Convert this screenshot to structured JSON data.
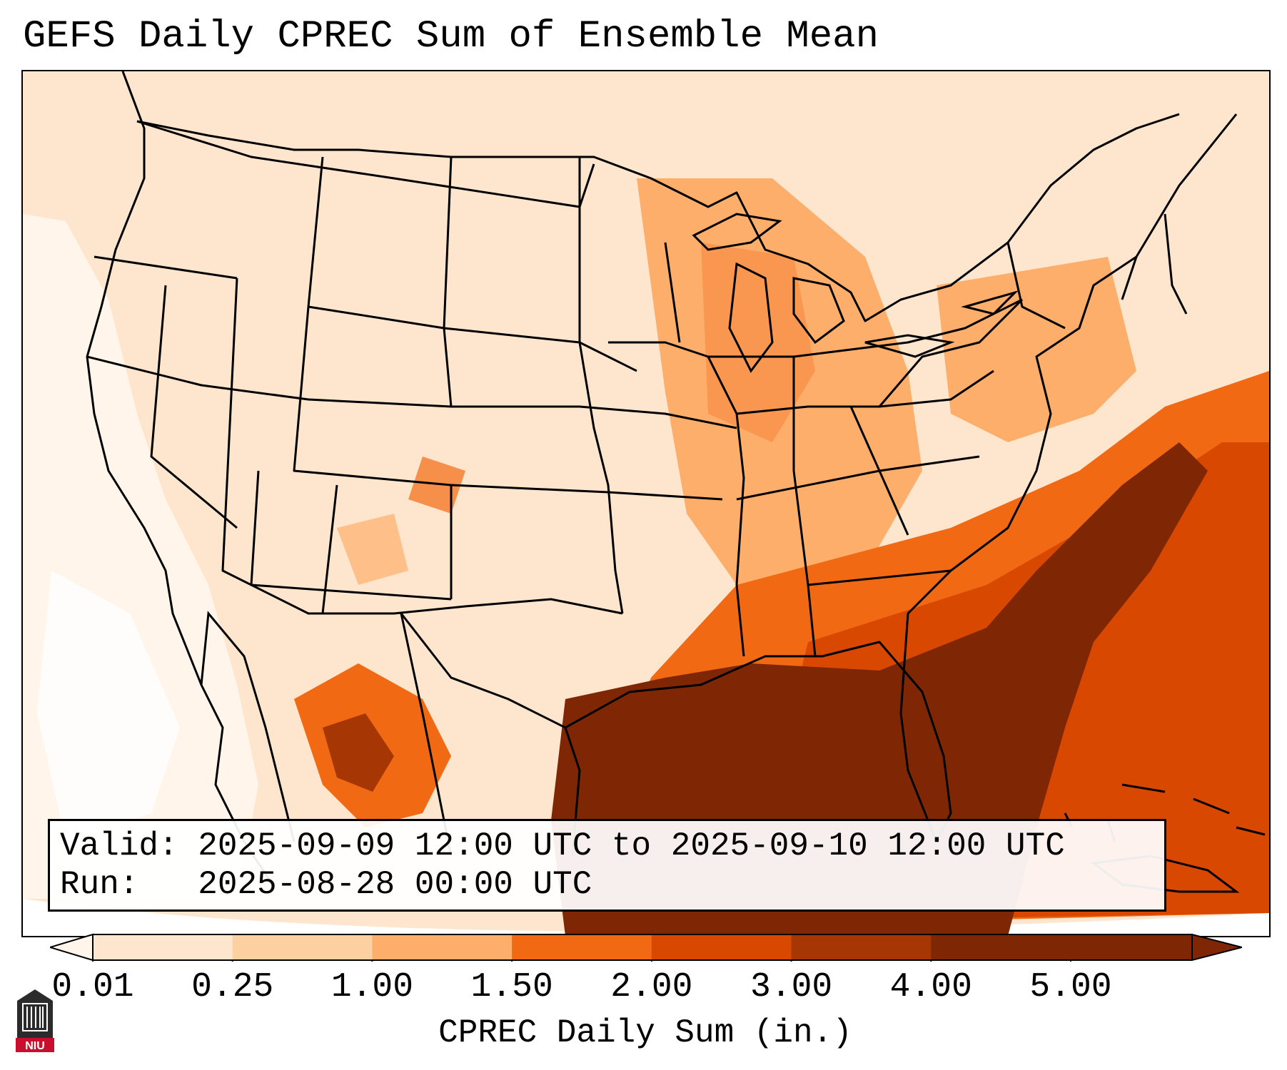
{
  "title": "GEFS Daily CPREC Sum of Ensemble Mean",
  "valid_line": "Valid: 2025-09-09 12:00 UTC to 2025-09-10 12:00 UTC",
  "run_line": "Run:   2025-08-28 00:00 UTC",
  "colorbar": {
    "label": "CPREC Daily Sum (in.)",
    "ticks": [
      "0.01",
      "0.25",
      "1.00",
      "1.50",
      "2.00",
      "3.00",
      "4.00",
      "5.00"
    ],
    "colors": [
      "#fff5eb",
      "#fee6ce",
      "#fdd0a2",
      "#fdae6b",
      "#f16913",
      "#d94801",
      "#a63603",
      "#7f2704"
    ]
  },
  "logo": {
    "name": "niu-logo",
    "text": "NIU"
  }
}
